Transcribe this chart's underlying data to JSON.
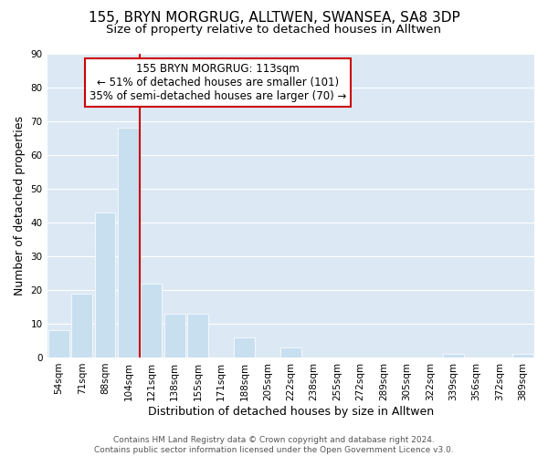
{
  "title": "155, BRYN MORGRUG, ALLTWEN, SWANSEA, SA8 3DP",
  "subtitle": "Size of property relative to detached houses in Alltwen",
  "xlabel": "Distribution of detached houses by size in Alltwen",
  "ylabel": "Number of detached properties",
  "bar_labels": [
    "54sqm",
    "71sqm",
    "88sqm",
    "104sqm",
    "121sqm",
    "138sqm",
    "155sqm",
    "171sqm",
    "188sqm",
    "205sqm",
    "222sqm",
    "238sqm",
    "255sqm",
    "272sqm",
    "289sqm",
    "305sqm",
    "322sqm",
    "339sqm",
    "356sqm",
    "372sqm",
    "389sqm"
  ],
  "bar_values": [
    8,
    19,
    43,
    68,
    22,
    13,
    13,
    0,
    6,
    0,
    3,
    0,
    0,
    0,
    0,
    0,
    0,
    1,
    0,
    0,
    1
  ],
  "bar_color": "#c8dff0",
  "vline_color": "#cc0000",
  "vline_pos": 3.5,
  "ylim": [
    0,
    90
  ],
  "yticks": [
    0,
    10,
    20,
    30,
    40,
    50,
    60,
    70,
    80,
    90
  ],
  "annotation_box_text": "155 BRYN MORGRUG: 113sqm\n← 51% of detached houses are smaller (101)\n35% of semi-detached houses are larger (70) →",
  "footer_line1": "Contains HM Land Registry data © Crown copyright and database right 2024.",
  "footer_line2": "Contains public sector information licensed under the Open Government Licence v3.0.",
  "title_fontsize": 11,
  "subtitle_fontsize": 9.5,
  "axis_label_fontsize": 9,
  "tick_fontsize": 7.5,
  "annotation_fontsize": 8.5,
  "footer_fontsize": 6.5,
  "bg_color": "#dce9f5"
}
